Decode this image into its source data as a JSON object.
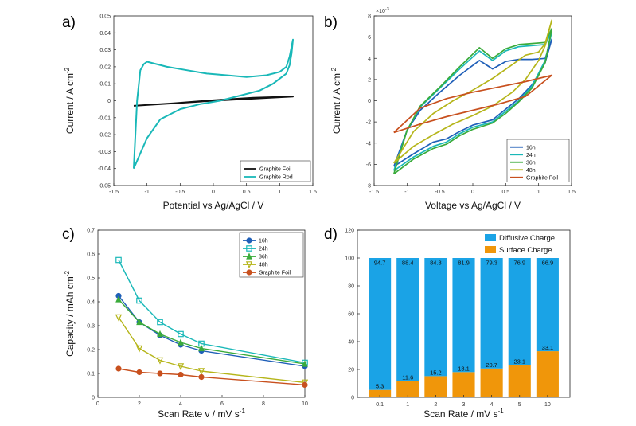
{
  "colors": {
    "blue": "#1f5fb8",
    "teal": "#19b8b8",
    "green": "#3aab3a",
    "yellow": "#b5b51a",
    "orange": "#c8501e",
    "black": "#111111",
    "diffusive": "#1aa3e6",
    "surface": "#f0960a"
  },
  "chart_data": [
    {
      "panel": "a)",
      "type": "line",
      "xlabel": "Potential vs Ag/AgCl / V",
      "ylabel_main": "Current / A cm",
      "ylabel_sup": "-2",
      "xlim": [
        -1.5,
        1.5
      ],
      "ylim": [
        -0.05,
        0.05
      ],
      "xticks": [
        -1.5,
        -1,
        -0.5,
        0,
        0.5,
        1,
        1.5
      ],
      "xtick_labels": [
        "-1.5",
        "-1",
        "-0.5",
        "0",
        "0.5",
        "1",
        "1.5"
      ],
      "yticks": [
        -0.05,
        -0.04,
        -0.03,
        -0.02,
        -0.01,
        0,
        0.01,
        0.02,
        0.03,
        0.04,
        0.05
      ],
      "ytick_labels": [
        "-0.05",
        "-0.04",
        "-0.03",
        "-0.02",
        "-0.01",
        "0",
        "0.01",
        "0.02",
        "0.03",
        "0.04",
        "0.05"
      ],
      "legend_position": "bottom-right",
      "series": [
        {
          "name": "Graphite Foil",
          "color_key": "black",
          "x": [
            -1.2,
            -0.6,
            0,
            0.6,
            1.2,
            0.6,
            0,
            -0.6,
            -1.2
          ],
          "y": [
            -0.003,
            -0.0015,
            0,
            0.0012,
            0.0025,
            0.0018,
            0.0003,
            -0.0015,
            -0.003
          ]
        },
        {
          "name": "Graphite Rod",
          "color_key": "teal",
          "x": [
            -1.2,
            -1.1,
            -1.0,
            -0.8,
            -0.5,
            -0.2,
            0.1,
            0.4,
            0.7,
            0.9,
            1.0,
            1.1,
            1.15,
            1.18,
            1.2,
            1.15,
            1.1,
            1.0,
            0.8,
            0.5,
            0.2,
            -0.1,
            -0.4,
            -0.7,
            -0.9,
            -1.0,
            -1.05,
            -1.1,
            -1.15,
            -1.2
          ],
          "y": [
            -0.04,
            -0.031,
            -0.022,
            -0.011,
            -0.005,
            -0.002,
            0.0,
            0.003,
            0.006,
            0.01,
            0.013,
            0.016,
            0.021,
            0.028,
            0.036,
            0.026,
            0.02,
            0.017,
            0.015,
            0.014,
            0.015,
            0.016,
            0.018,
            0.02,
            0.022,
            0.023,
            0.0215,
            0.018,
            0.0,
            -0.04
          ]
        }
      ]
    },
    {
      "panel": "b)",
      "type": "line",
      "xlabel": "Voltage vs Ag/AgCl / V",
      "ylabel_main": "Current / A cm",
      "ylabel_sup": "-2",
      "exponent": "×10",
      "exponent_sup": "-3",
      "xlim": [
        -1.5,
        1.5
      ],
      "ylim": [
        -8,
        8
      ],
      "xticks": [
        -1.5,
        -1,
        -0.5,
        0,
        0.5,
        1,
        1.5
      ],
      "xtick_labels": [
        "-1.5",
        "-1",
        "-0.5",
        "0",
        "0.5",
        "1",
        "1.5"
      ],
      "yticks": [
        -8,
        -6,
        -4,
        -2,
        0,
        2,
        4,
        6,
        8
      ],
      "ytick_labels": [
        "-8",
        "-6",
        "-4",
        "-2",
        "0",
        "2",
        "4",
        "6",
        "8"
      ],
      "legend_position": "bottom-right",
      "series": [
        {
          "name": "16h",
          "color_key": "blue",
          "x": [
            -1.2,
            -0.9,
            -0.6,
            -0.4,
            -0.2,
            0.0,
            0.3,
            0.5,
            0.7,
            0.9,
            1.0,
            1.1,
            1.2,
            1.1,
            0.9,
            0.7,
            0.5,
            0.3,
            0.1,
            -0.2,
            -0.5,
            -0.8,
            -1.0,
            -1.2
          ],
          "y": [
            -6.2,
            -5.0,
            -3.9,
            -3.6,
            -2.9,
            -2.3,
            -1.8,
            -0.8,
            0.2,
            1.5,
            2.5,
            3.6,
            5.8,
            4.0,
            3.9,
            3.9,
            3.7,
            3.0,
            3.8,
            2.4,
            0.8,
            -0.9,
            -2.8,
            -6.2
          ]
        },
        {
          "name": "24h",
          "color_key": "teal",
          "x": [
            -1.2,
            -0.9,
            -0.6,
            -0.4,
            -0.2,
            0.0,
            0.3,
            0.5,
            0.7,
            0.9,
            1.0,
            1.1,
            1.2,
            1.1,
            0.9,
            0.7,
            0.5,
            0.3,
            0.1,
            -0.2,
            -0.5,
            -0.8,
            -1.0,
            -1.2
          ],
          "y": [
            -6.6,
            -5.3,
            -4.3,
            -3.9,
            -3.1,
            -2.5,
            -2.0,
            -1.0,
            0.0,
            1.4,
            2.6,
            3.8,
            6.5,
            5.3,
            5.2,
            5.1,
            4.7,
            3.8,
            4.7,
            3.0,
            1.2,
            -0.6,
            -2.8,
            -6.6
          ]
        },
        {
          "name": "36h",
          "color_key": "green",
          "x": [
            -1.2,
            -0.9,
            -0.6,
            -0.4,
            -0.2,
            0.0,
            0.3,
            0.5,
            0.7,
            0.9,
            1.0,
            1.1,
            1.2,
            1.1,
            0.9,
            0.7,
            0.5,
            0.3,
            0.1,
            -0.2,
            -0.5,
            -0.8,
            -1.0,
            -1.2
          ],
          "y": [
            -6.9,
            -5.5,
            -4.5,
            -4.1,
            -3.3,
            -2.7,
            -2.1,
            -1.2,
            -0.1,
            1.2,
            2.4,
            3.6,
            6.8,
            5.5,
            5.4,
            5.3,
            4.9,
            4.0,
            5.0,
            3.2,
            1.3,
            -0.5,
            -2.8,
            -6.9
          ]
        },
        {
          "name": "48h",
          "color_key": "yellow",
          "x": [
            -1.2,
            -0.9,
            -0.6,
            -0.3,
            0.0,
            0.3,
            0.6,
            0.8,
            1.0,
            1.1,
            1.2,
            1.1,
            1.0,
            0.8,
            0.6,
            0.3,
            0.0,
            -0.3,
            -0.6,
            -0.9,
            -1.2
          ],
          "y": [
            -5.9,
            -4.3,
            -3.2,
            -2.2,
            -1.4,
            -0.5,
            0.8,
            2.0,
            3.8,
            5.2,
            7.6,
            5.4,
            4.6,
            4.3,
            3.4,
            2.1,
            1.0,
            0.0,
            -1.2,
            -2.9,
            -5.9
          ]
        },
        {
          "name": "Graphite Foil",
          "color_key": "orange",
          "x": [
            -1.2,
            -0.8,
            -0.4,
            0.0,
            0.4,
            0.8,
            1.2,
            0.8,
            0.4,
            0.0,
            -0.4,
            -0.8,
            -1.2
          ],
          "y": [
            -3.0,
            -2.2,
            -1.5,
            -0.9,
            -0.3,
            0.4,
            2.4,
            1.8,
            1.3,
            0.8,
            0.2,
            -0.7,
            -3.0
          ]
        }
      ]
    },
    {
      "panel": "c)",
      "type": "line",
      "xlabel_main": "Scan Rate v / mV s",
      "xlabel_sup": "-1",
      "ylabel_main": "Capacity / mAh cm",
      "ylabel_sup": "-2",
      "xlim": [
        0,
        10
      ],
      "ylim": [
        0,
        0.7
      ],
      "xticks": [
        0,
        2,
        4,
        6,
        8,
        10
      ],
      "xtick_labels": [
        "0",
        "2",
        "4",
        "6",
        "8",
        "10"
      ],
      "yticks": [
        0,
        0.1,
        0.2,
        0.3,
        0.4,
        0.5,
        0.6,
        0.7
      ],
      "ytick_labels": [
        "0",
        "0.1",
        "0.2",
        "0.3",
        "0.4",
        "0.5",
        "0.6",
        "0.7"
      ],
      "legend_position": "top-right",
      "series": [
        {
          "name": "16h",
          "color_key": "blue",
          "marker": "circle",
          "x": [
            1,
            2,
            3,
            4,
            5,
            10
          ],
          "y": [
            0.425,
            0.315,
            0.26,
            0.22,
            0.195,
            0.13
          ]
        },
        {
          "name": "24h",
          "color_key": "teal",
          "marker": "square",
          "x": [
            1,
            2,
            3,
            4,
            5,
            10
          ],
          "y": [
            0.575,
            0.405,
            0.315,
            0.265,
            0.225,
            0.145
          ]
        },
        {
          "name": "36h",
          "color_key": "green",
          "marker": "triangle-up",
          "x": [
            1,
            2,
            3,
            4,
            5,
            10
          ],
          "y": [
            0.41,
            0.315,
            0.265,
            0.23,
            0.205,
            0.14
          ]
        },
        {
          "name": "48h",
          "color_key": "yellow",
          "marker": "triangle-down",
          "x": [
            1,
            2,
            3,
            4,
            5,
            10
          ],
          "y": [
            0.335,
            0.205,
            0.155,
            0.13,
            0.11,
            0.062
          ]
        },
        {
          "name": "Graphite Foil",
          "color_key": "orange",
          "marker": "circle",
          "x": [
            1,
            2,
            3,
            4,
            5,
            10
          ],
          "y": [
            0.12,
            0.105,
            0.1,
            0.095,
            0.085,
            0.052
          ]
        }
      ]
    },
    {
      "panel": "d)",
      "type": "bar",
      "stacked": true,
      "xlabel_main": "Scan Rate / mV s",
      "xlabel_sup": "-1",
      "ylim": [
        0,
        120
      ],
      "yticks": [
        0,
        20,
        40,
        60,
        80,
        100,
        120
      ],
      "ytick_labels": [
        "0",
        "20",
        "40",
        "60",
        "80",
        "100",
        "120"
      ],
      "categories": [
        "0.1",
        "1",
        "2",
        "3",
        "4",
        "5",
        "10"
      ],
      "legend_position": "top-right",
      "series": [
        {
          "name": "Surface Charge",
          "color_key": "surface",
          "values": [
            5.3,
            11.6,
            15.2,
            18.1,
            20.7,
            23.1,
            33.1
          ],
          "labels": [
            "5.3",
            "11.6",
            "15.2",
            "18.1",
            "20.7",
            "23.1",
            "33.1"
          ]
        },
        {
          "name": "Diffusive Charge",
          "color_key": "diffusive",
          "values": [
            94.7,
            88.4,
            84.8,
            81.9,
            79.3,
            76.9,
            66.9
          ],
          "labels": [
            "94.7",
            "88.4",
            "84.8",
            "81.9",
            "79.3",
            "76.9",
            "66.9"
          ]
        }
      ],
      "legend_order": [
        "Diffusive Charge",
        "Surface Charge"
      ]
    }
  ]
}
